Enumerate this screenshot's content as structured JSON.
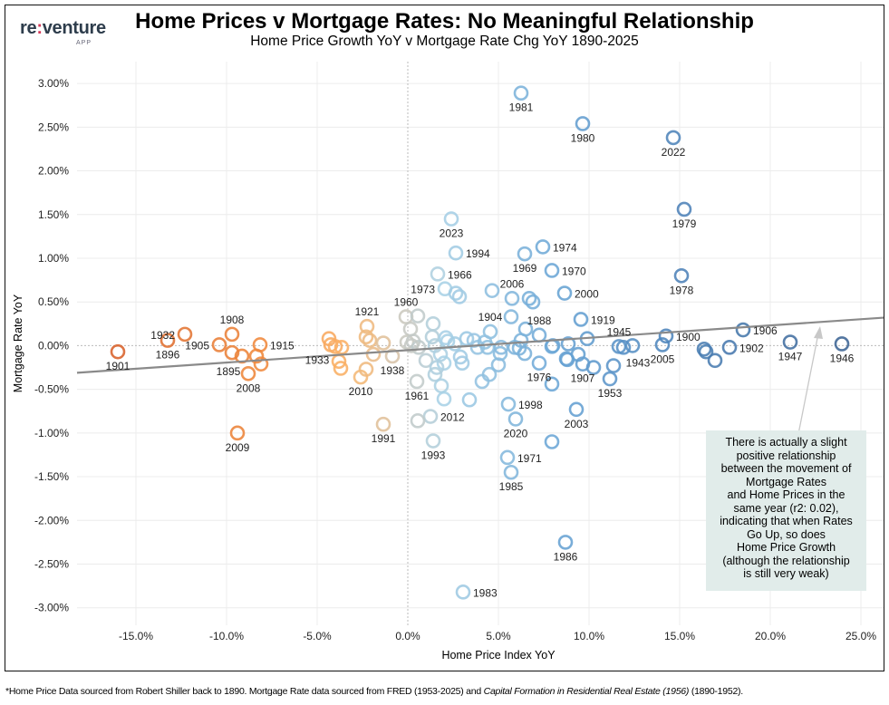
{
  "logo": {
    "text_a": "re",
    "colon": ":",
    "text_b": "venture",
    "sub": "APP"
  },
  "header": {
    "title": "Home Prices v Mortgage Rates: No Meaningful Relationship",
    "subtitle": "Home Price Growth YoY v Mortgage Rate Chg YoY 1890-2025"
  },
  "annotation": {
    "lines": [
      "There is actually a slight",
      "positive relationship",
      "between the movement of",
      "Mortgage Rates",
      "and Home Prices in the",
      "same year (r2: 0.02),",
      "indicating that when Rates",
      "Go Up, so does",
      "Home Price Growth",
      "(although the relationship",
      "is still very weak)"
    ],
    "background": "#e1ecea"
  },
  "footer": {
    "text_a": "*Home Price Data sourced from Robert Shiller back to 1890. Mortgage Rate data sourced from FRED (1953-2025) and ",
    "text_italic": "Capital Formation in Residential Real Estate (1956)",
    "text_b": " (1890-1952)."
  },
  "chart_data": {
    "type": "scatter",
    "xlabel": "Home Price Index YoY",
    "ylabel": "Mortgage Rate YoY",
    "xlim": [
      -18.25,
      26.25
    ],
    "ylim": [
      -3.2,
      3.25
    ],
    "x_ticks": [
      -15,
      -10,
      -5,
      0,
      5,
      10,
      15,
      20,
      25
    ],
    "x_tick_labels": [
      "-15.0%",
      "-10.0%",
      "-5.0%",
      "0.0%",
      "5.0%",
      "10.0%",
      "15.0%",
      "20.0%",
      "25.0%"
    ],
    "y_ticks": [
      3,
      2.5,
      2,
      1.5,
      1,
      0.5,
      0,
      -0.5,
      -1,
      -1.5,
      -2,
      -2.5,
      -3
    ],
    "y_tick_labels": [
      "3.00%",
      "2.50%",
      "2.00%",
      "1.50%",
      "1.00%",
      "0.50%",
      "0.00%",
      "-0.50%",
      "-1.00%",
      "-1.50%",
      "-2.00%",
      "-2.50%",
      "-3.00%"
    ],
    "grid": true,
    "trendline": {
      "slope": 0.01416,
      "intercept": -0.052,
      "color": "#8a8a8a"
    },
    "color_scale": [
      {
        "x": -16,
        "color": "#d8612a"
      },
      {
        "x": -8,
        "color": "#f08a3c"
      },
      {
        "x": -3,
        "color": "#fbb56a"
      },
      {
        "x": 0,
        "color": "#c9c9c1"
      },
      {
        "x": 2,
        "color": "#a9d1e6"
      },
      {
        "x": 8,
        "color": "#6aa6d6"
      },
      {
        "x": 14,
        "color": "#4f86bd"
      },
      {
        "x": 24,
        "color": "#3c6494"
      }
    ],
    "points": [
      {
        "x": 6.25,
        "y": 2.89,
        "label": "1981",
        "label_pos": "below"
      },
      {
        "x": 9.65,
        "y": 2.54,
        "label": "1980",
        "label_pos": "below"
      },
      {
        "x": 14.65,
        "y": 2.38,
        "label": "2022",
        "label_pos": "below"
      },
      {
        "x": 15.25,
        "y": 1.56,
        "label": "1979",
        "label_pos": "below"
      },
      {
        "x": 15.1,
        "y": 0.8,
        "label": "1978",
        "label_pos": "below"
      },
      {
        "x": 2.4,
        "y": 1.45,
        "label": "2023",
        "label_pos": "below"
      },
      {
        "x": 2.65,
        "y": 1.06,
        "label": "1994",
        "label_pos": "right"
      },
      {
        "x": 7.45,
        "y": 1.13,
        "label": "1974",
        "label_pos": "right"
      },
      {
        "x": 6.45,
        "y": 1.05,
        "label": "1969",
        "label_pos": "below"
      },
      {
        "x": 7.95,
        "y": 0.86,
        "label": "1970",
        "label_pos": "right"
      },
      {
        "x": 1.65,
        "y": 0.82,
        "label": "1966",
        "label_pos": "right"
      },
      {
        "x": 2.05,
        "y": 0.65,
        "label": "1973",
        "label_pos": "left"
      },
      {
        "x": 5.75,
        "y": 0.54,
        "label": "2006",
        "label_pos": "above"
      },
      {
        "x": 8.65,
        "y": 0.6,
        "label": "2000",
        "label_pos": "right"
      },
      {
        "x": -0.1,
        "y": 0.33,
        "label": "1960",
        "label_pos": "above"
      },
      {
        "x": -2.25,
        "y": 0.22,
        "label": "1921",
        "label_pos": "above"
      },
      {
        "x": 4.55,
        "y": 0.16,
        "label": "1904",
        "label_pos": "above"
      },
      {
        "x": 7.25,
        "y": 0.12,
        "label": "1988",
        "label_pos": "above"
      },
      {
        "x": 9.55,
        "y": 0.3,
        "label": "1919",
        "label_pos": "right"
      },
      {
        "x": 11.65,
        "y": -0.01,
        "label": "1945",
        "label_pos": "above"
      },
      {
        "x": 14.25,
        "y": 0.11,
        "label": "1900",
        "label_pos": "right"
      },
      {
        "x": 14.05,
        "y": 0.01,
        "label": "2005",
        "label_pos": "below"
      },
      {
        "x": 18.5,
        "y": 0.18,
        "label": "1906",
        "label_pos": "right"
      },
      {
        "x": 17.75,
        "y": -0.02,
        "label": "1902",
        "label_pos": "right"
      },
      {
        "x": 21.1,
        "y": 0.04,
        "label": "1947",
        "label_pos": "below"
      },
      {
        "x": 23.95,
        "y": 0.02,
        "label": "1946",
        "label_pos": "below"
      },
      {
        "x": 11.9,
        "y": -0.02,
        "label": "1943",
        "label_pos": "below-right"
      },
      {
        "x": 11.15,
        "y": -0.38,
        "label": "1953",
        "label_pos": "below"
      },
      {
        "x": 9.65,
        "y": -0.21,
        "label": "1907",
        "label_pos": "below"
      },
      {
        "x": 7.25,
        "y": -0.2,
        "label": "1976",
        "label_pos": "below"
      },
      {
        "x": 5.55,
        "y": -0.67,
        "label": "1998",
        "label_pos": "right"
      },
      {
        "x": 5.95,
        "y": -0.84,
        "label": "2020",
        "label_pos": "below"
      },
      {
        "x": 9.3,
        "y": -0.73,
        "label": "2003",
        "label_pos": "below"
      },
      {
        "x": 5.5,
        "y": -1.28,
        "label": "1971",
        "label_pos": "right"
      },
      {
        "x": 5.7,
        "y": -1.45,
        "label": "1985",
        "label_pos": "below"
      },
      {
        "x": 8.7,
        "y": -2.25,
        "label": "1986",
        "label_pos": "below"
      },
      {
        "x": 3.05,
        "y": -2.82,
        "label": "1983",
        "label_pos": "right"
      },
      {
        "x": 1.25,
        "y": -0.81,
        "label": "2012",
        "label_pos": "right"
      },
      {
        "x": 1.4,
        "y": -1.09,
        "label": "1993",
        "label_pos": "below"
      },
      {
        "x": 0.5,
        "y": -0.41,
        "label": "1961",
        "label_pos": "below"
      },
      {
        "x": -1.35,
        "y": -0.9,
        "label": "1991",
        "label_pos": "below"
      },
      {
        "x": -0.85,
        "y": -0.12,
        "label": "1938",
        "label_pos": "below"
      },
      {
        "x": -2.6,
        "y": -0.36,
        "label": "2010",
        "label_pos": "below"
      },
      {
        "x": -4.25,
        "y": 0.01,
        "label": "1933",
        "label_pos": "below-left"
      },
      {
        "x": -9.4,
        "y": -1.0,
        "label": "2009",
        "label_pos": "below"
      },
      {
        "x": -9.7,
        "y": 0.13,
        "label": "1908",
        "label_pos": "above"
      },
      {
        "x": -12.3,
        "y": 0.13,
        "label": "1932",
        "label_pos": "left"
      },
      {
        "x": -10.4,
        "y": 0.01,
        "label": "1905",
        "label_pos": "left"
      },
      {
        "x": -13.25,
        "y": 0.06,
        "label": "1896",
        "label_pos": "below"
      },
      {
        "x": -16.0,
        "y": -0.07,
        "label": "1901",
        "label_pos": "below"
      },
      {
        "x": -9.15,
        "y": -0.12,
        "label": "1895",
        "label_pos": "below-left"
      },
      {
        "x": -8.8,
        "y": -0.32,
        "label": "2008",
        "label_pos": "below"
      },
      {
        "x": -8.15,
        "y": 0.01,
        "label": "1915",
        "label_pos": "right"
      },
      {
        "x": -9.7,
        "y": -0.08
      },
      {
        "x": -8.35,
        "y": -0.12
      },
      {
        "x": -8.1,
        "y": -0.21
      },
      {
        "x": -4.35,
        "y": 0.08
      },
      {
        "x": -4.0,
        "y": -0.01
      },
      {
        "x": -3.65,
        "y": -0.02
      },
      {
        "x": -3.8,
        "y": -0.18
      },
      {
        "x": -3.7,
        "y": -0.26
      },
      {
        "x": -2.3,
        "y": 0.1
      },
      {
        "x": -2.1,
        "y": 0.06
      },
      {
        "x": -1.9,
        "y": -0.1
      },
      {
        "x": -2.3,
        "y": -0.27
      },
      {
        "x": -1.35,
        "y": 0.03
      },
      {
        "x": 0.55,
        "y": 0.34
      },
      {
        "x": 0.15,
        "y": 0.19
      },
      {
        "x": -0.05,
        "y": 0.04
      },
      {
        "x": 0.3,
        "y": 0.05
      },
      {
        "x": 0.6,
        "y": -0.02
      },
      {
        "x": 0.2,
        "y": 0.0
      },
      {
        "x": 0.55,
        "y": -0.86
      },
      {
        "x": 1.0,
        "y": -0.17
      },
      {
        "x": 1.4,
        "y": 0.25
      },
      {
        "x": 2.65,
        "y": 0.6
      },
      {
        "x": 2.85,
        "y": 0.56
      },
      {
        "x": 4.65,
        "y": 0.63
      },
      {
        "x": 6.7,
        "y": 0.54
      },
      {
        "x": 6.9,
        "y": 0.5
      },
      {
        "x": 5.7,
        "y": 0.33
      },
      {
        "x": 6.5,
        "y": 0.19
      },
      {
        "x": 1.35,
        "y": 0.1
      },
      {
        "x": 1.5,
        "y": 0.0
      },
      {
        "x": 1.8,
        "y": -0.1
      },
      {
        "x": 2.2,
        "y": 0.05
      },
      {
        "x": 2.0,
        "y": -0.2
      },
      {
        "x": 1.6,
        "y": -0.25
      },
      {
        "x": 1.5,
        "y": -0.33
      },
      {
        "x": 2.1,
        "y": 0.09
      },
      {
        "x": 1.85,
        "y": -0.46
      },
      {
        "x": 2.0,
        "y": -0.61
      },
      {
        "x": 2.6,
        "y": 0.02
      },
      {
        "x": 2.9,
        "y": -0.13
      },
      {
        "x": 3.0,
        "y": -0.2
      },
      {
        "x": 3.25,
        "y": 0.08
      },
      {
        "x": 3.65,
        "y": 0.06
      },
      {
        "x": 3.85,
        "y": -0.02
      },
      {
        "x": 4.25,
        "y": 0.04
      },
      {
        "x": 4.4,
        "y": -0.02
      },
      {
        "x": 3.4,
        "y": -0.62
      },
      {
        "x": 4.1,
        "y": -0.41
      },
      {
        "x": 4.5,
        "y": -0.33
      },
      {
        "x": 5.0,
        "y": -0.22
      },
      {
        "x": 5.1,
        "y": -0.09
      },
      {
        "x": 5.15,
        "y": -0.02
      },
      {
        "x": 5.9,
        "y": -0.02
      },
      {
        "x": 6.25,
        "y": 0.06
      },
      {
        "x": 6.15,
        "y": -0.03
      },
      {
        "x": 6.45,
        "y": -0.09
      },
      {
        "x": 7.95,
        "y": -0.44
      },
      {
        "x": 7.95,
        "y": -0.01
      },
      {
        "x": 7.95,
        "y": -1.1
      },
      {
        "x": 8.85,
        "y": 0.02
      },
      {
        "x": 8.75,
        "y": -0.15
      },
      {
        "x": 9.4,
        "y": -0.1
      },
      {
        "x": 10.25,
        "y": -0.25
      },
      {
        "x": 9.9,
        "y": 0.08
      },
      {
        "x": 8.8,
        "y": -0.16
      },
      {
        "x": 11.35,
        "y": -0.23
      },
      {
        "x": 12.4,
        "y": 0.0
      },
      {
        "x": 16.35,
        "y": -0.04
      },
      {
        "x": 16.45,
        "y": -0.07
      },
      {
        "x": 16.95,
        "y": -0.17
      },
      {
        "x": 8.0,
        "y": 0.0
      }
    ]
  }
}
